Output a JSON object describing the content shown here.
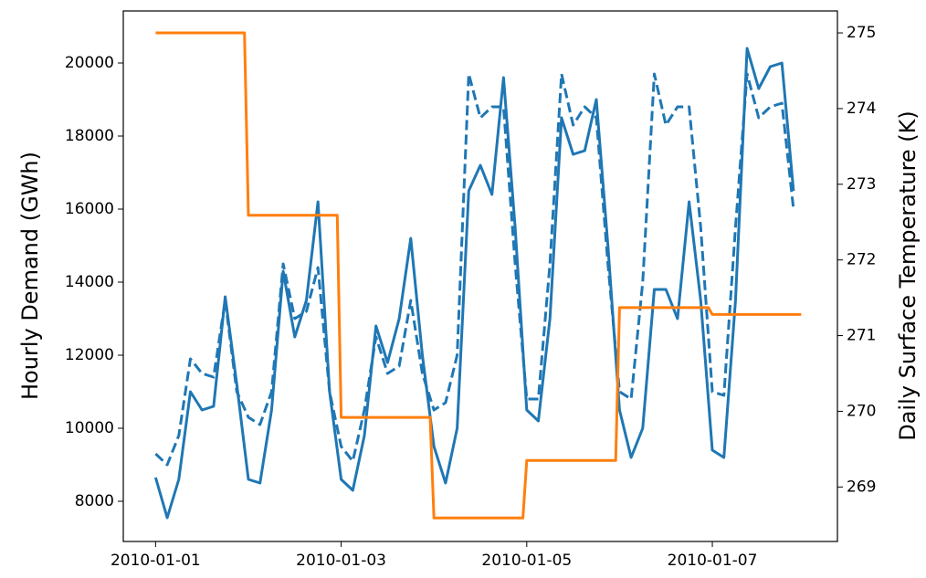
{
  "chart_data": {
    "type": "line",
    "ylabel": "Hourly Demand (GWh)",
    "y2label": "Daily Surface Temperature (K)",
    "ylabel_color": "#1f77b4",
    "y2label_color": "#ff7f0e",
    "x": [
      "2010-01-01T00:00",
      "2010-01-01T03:00",
      "2010-01-01T06:00",
      "2010-01-01T09:00",
      "2010-01-01T12:00",
      "2010-01-01T15:00",
      "2010-01-01T18:00",
      "2010-01-01T21:00",
      "2010-01-02T00:00",
      "2010-01-02T03:00",
      "2010-01-02T06:00",
      "2010-01-02T09:00",
      "2010-01-02T12:00",
      "2010-01-02T15:00",
      "2010-01-02T18:00",
      "2010-01-02T21:00",
      "2010-01-03T00:00",
      "2010-01-03T03:00",
      "2010-01-03T06:00",
      "2010-01-03T09:00",
      "2010-01-03T12:00",
      "2010-01-03T15:00",
      "2010-01-03T18:00",
      "2010-01-03T21:00",
      "2010-01-04T00:00",
      "2010-01-04T03:00",
      "2010-01-04T06:00",
      "2010-01-04T09:00",
      "2010-01-04T12:00",
      "2010-01-04T15:00",
      "2010-01-04T18:00",
      "2010-01-04T21:00",
      "2010-01-05T00:00",
      "2010-01-05T03:00",
      "2010-01-05T06:00",
      "2010-01-05T09:00",
      "2010-01-05T12:00",
      "2010-01-05T15:00",
      "2010-01-05T18:00",
      "2010-01-05T21:00",
      "2010-01-06T00:00",
      "2010-01-06T03:00",
      "2010-01-06T06:00",
      "2010-01-06T09:00",
      "2010-01-06T12:00",
      "2010-01-06T15:00",
      "2010-01-06T18:00",
      "2010-01-06T21:00",
      "2010-01-07T00:00",
      "2010-01-07T03:00",
      "2010-01-07T06:00",
      "2010-01-07T09:00",
      "2010-01-07T12:00",
      "2010-01-07T15:00",
      "2010-01-07T18:00",
      "2010-01-07T21:00"
    ],
    "series": [
      {
        "color": "#1f77b4",
        "dashed": false,
        "values": [
          8650,
          7550,
          8600,
          11000,
          10500,
          10600,
          13600,
          11200,
          8600,
          8500,
          10500,
          14300,
          12500,
          13500,
          16200,
          11000,
          8600,
          8300,
          9800,
          12800,
          11800,
          13000,
          15200,
          12000,
          9500,
          8500,
          10000,
          16500,
          17200,
          16400,
          19600,
          15500,
          10500,
          10200,
          13000,
          18500,
          17500,
          17600,
          19000,
          15000,
          10500,
          9200,
          10000,
          13800,
          13800,
          13000,
          16200,
          13500,
          9400,
          9200,
          13500,
          20400,
          19300,
          19900,
          20000,
          16500
        ]
      },
      {
        "color": "#1f77b4",
        "dashed": true,
        "values": [
          9300,
          9000,
          9800,
          11900,
          11500,
          11400,
          13500,
          11000,
          10300,
          10100,
          11000,
          14500,
          13000,
          13200,
          14400,
          11000,
          9500,
          9100,
          10500,
          12500,
          11500,
          11700,
          13500,
          11500,
          10500,
          10700,
          12000,
          19700,
          18500,
          18800,
          18800,
          14500,
          10800,
          10800,
          14500,
          19700,
          18300,
          18800,
          18500,
          14500,
          11000,
          10800,
          14000,
          19700,
          18300,
          18800,
          18800,
          15500,
          11000,
          10900,
          15500,
          19700,
          18500,
          18800,
          18900,
          16000
        ]
      },
      {
        "color": "#ff7f0e",
        "dashed": false,
        "axis": "y2",
        "x": [
          "2010-01-01T00:00",
          "2010-01-01T23:00",
          "2010-01-02T00:00",
          "2010-01-02T23:00",
          "2010-01-03T00:00",
          "2010-01-03T23:00",
          "2010-01-04T00:00",
          "2010-01-04T23:00",
          "2010-01-05T00:00",
          "2010-01-05T23:00",
          "2010-01-06T00:00",
          "2010-01-06T23:00",
          "2010-01-07T00:00",
          "2010-01-07T23:00"
        ],
        "values": [
          275.0,
          275.0,
          272.59,
          272.59,
          269.92,
          269.92,
          268.59,
          268.59,
          269.35,
          269.35,
          271.37,
          271.37,
          271.28,
          271.28
        ]
      }
    ],
    "xlim": [
      "2009-12-31T15:39",
      "2010-01-08T08:21"
    ],
    "xticks": [
      "2010-01-01",
      "2010-01-03",
      "2010-01-05",
      "2010-01-07"
    ],
    "ylim": [
      6900,
      21425
    ],
    "yticks": [
      8000,
      10000,
      12000,
      14000,
      16000,
      18000,
      20000
    ],
    "y2lim": [
      268.28,
      275.29
    ],
    "y2ticks": [
      269,
      270,
      271,
      272,
      273,
      274,
      275
    ]
  }
}
